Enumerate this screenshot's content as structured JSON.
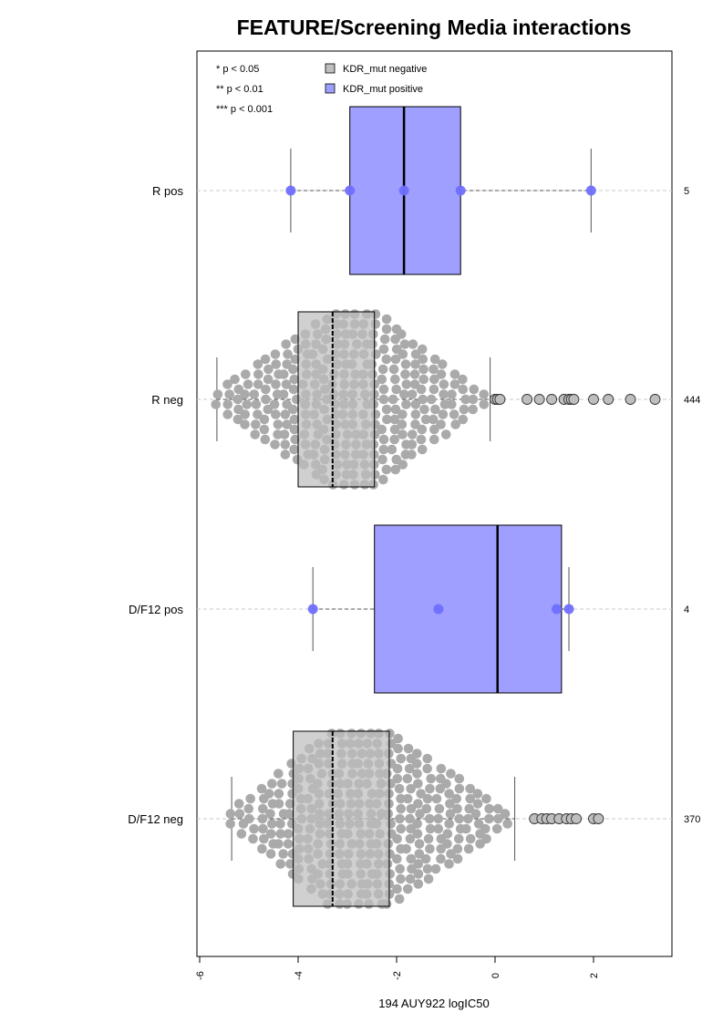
{
  "chart_data": {
    "type": "box",
    "title": "FEATURE/Screening Media interactions",
    "xlabel": "194 AUY922 logIC50",
    "ylabel": "",
    "xlim": [
      -6,
      3.6
    ],
    "x_ticks": [
      -6,
      -4,
      -2,
      0,
      2
    ],
    "grid": false,
    "legend_position": "top-left",
    "legend": [
      {
        "label": "KDR_mut negative",
        "color": "#bebebe"
      },
      {
        "label": "KDR_mut positive",
        "color": "#9f9fff"
      }
    ],
    "significance_key": [
      "* p < 0.05",
      "** p < 0.01",
      "*** p < 0.001"
    ],
    "categories": [
      "R pos",
      "R neg",
      "D/F12 pos",
      "D/F12 neg"
    ],
    "counts": [
      "5",
      "444",
      "4",
      "370"
    ],
    "groups": [
      {
        "name": "R pos",
        "kdr_mut": "positive",
        "n": 5,
        "whisker_low": -4.15,
        "q1": -2.95,
        "median": -1.85,
        "q3": -0.7,
        "whisker_high": 1.95,
        "points": [
          -4.15,
          -2.95,
          -1.85,
          -0.7,
          1.95
        ],
        "outliers": []
      },
      {
        "name": "R neg",
        "kdr_mut": "negative",
        "n": 444,
        "whisker_low": -5.65,
        "q1": -4.0,
        "median": -3.3,
        "q3": -2.45,
        "whisker_high": -0.1,
        "outliers": [
          0.0,
          0.05,
          0.1,
          0.65,
          0.9,
          1.15,
          1.4,
          1.5,
          1.55,
          1.6,
          2.0,
          2.3,
          2.75,
          3.25
        ]
      },
      {
        "name": "D/F12 pos",
        "kdr_mut": "positive",
        "n": 4,
        "whisker_low": -3.7,
        "q1": -2.45,
        "median": 0.05,
        "q3": 1.35,
        "whisker_high": 1.5,
        "points": [
          -3.7,
          -1.15,
          1.25,
          1.5
        ],
        "outliers": []
      },
      {
        "name": "D/F12 neg",
        "kdr_mut": "negative",
        "n": 370,
        "whisker_low": -5.35,
        "q1": -4.1,
        "median": -3.3,
        "q3": -2.15,
        "whisker_high": 0.4,
        "outliers": [
          0.8,
          0.95,
          1.05,
          1.15,
          1.3,
          1.45,
          1.55,
          1.65,
          2.0,
          2.1
        ]
      }
    ]
  },
  "colors": {
    "negative_box": "#bebebe",
    "negative_point": "#aaaaaa",
    "positive_box": "#9f9fff",
    "positive_point": "#6f6fff",
    "dashed_line": "#c8c8c8"
  }
}
